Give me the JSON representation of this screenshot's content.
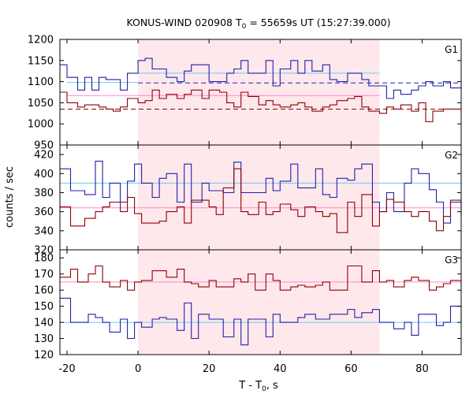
{
  "chart_data": {
    "type": "line",
    "title": "KONUS-WIND 020908 T",
    "title_sub": "0",
    "title_rest": " = 55659s UT (15:27:39.000)",
    "xlabel": "T - T",
    "xlabel_sub": "0",
    "xlabel_rest": ", s",
    "ylabel": "counts / sec",
    "xlim": [
      -22,
      91
    ],
    "xticks": [
      -20,
      0,
      20,
      40,
      60,
      80
    ],
    "x_tick_labels": [
      "-20",
      "0",
      "20",
      "40",
      "60",
      "80"
    ],
    "colors": {
      "blue": "#2020aa",
      "red": "#8b0000",
      "lightblue": "#66ccee",
      "pink": "#ff88cc",
      "shade": "#ffe8ec"
    },
    "shaded_interval": [
      0,
      68
    ],
    "panels": [
      {
        "name": "G1",
        "ylim": [
          950,
          1200
        ],
        "yticks": [
          950,
          1000,
          1050,
          1100,
          1150,
          1200
        ],
        "y_tick_labels": [
          "950",
          "1000",
          "1050",
          "1100",
          "1150",
          "1200"
        ],
        "step_x": [
          -22,
          -20,
          -17,
          -15,
          -13,
          -11,
          -9,
          -7,
          -5,
          -3,
          0,
          2,
          4,
          6,
          8,
          11,
          13,
          15,
          18,
          20,
          23,
          25,
          27,
          29,
          31,
          34,
          36,
          38,
          40,
          43,
          45,
          47,
          49,
          52,
          54,
          56,
          59,
          61,
          63,
          65,
          68,
          70,
          72,
          74,
          77,
          79,
          81,
          83,
          86,
          88,
          91
        ],
        "series": [
          {
            "color": "blue",
            "values": [
              1140,
              1110,
              1080,
              1110,
              1080,
              1110,
              1105,
              1105,
              1080,
              1120,
              1150,
              1155,
              1130,
              1130,
              1110,
              1100,
              1125,
              1140,
              1140,
              1100,
              1100,
              1120,
              1130,
              1150,
              1120,
              1120,
              1150,
              1090,
              1130,
              1150,
              1120,
              1150,
              1125,
              1140,
              1105,
              1100,
              1120,
              1120,
              1105,
              1090,
              1090,
              1060,
              1080,
              1070,
              1080,
              1090,
              1100,
              1090,
              1100,
              1085
            ]
          },
          {
            "color": "red",
            "values": [
              1075,
              1050,
              1040,
              1045,
              1045,
              1040,
              1035,
              1030,
              1040,
              1060,
              1050,
              1055,
              1080,
              1060,
              1070,
              1060,
              1070,
              1080,
              1060,
              1080,
              1075,
              1050,
              1040,
              1075,
              1065,
              1045,
              1055,
              1045,
              1040,
              1045,
              1050,
              1040,
              1030,
              1040,
              1045,
              1055,
              1060,
              1065,
              1040,
              1030,
              1025,
              1040,
              1035,
              1045,
              1030,
              1050,
              1005,
              1030,
              1035,
              1035
            ]
          }
        ],
        "levels": [
          {
            "color": "lightblue",
            "style": "solid",
            "x_from": 0,
            "x_to": 68,
            "value": 1120
          },
          {
            "color": "lightblue",
            "style": "solid",
            "x_from": -20,
            "x_to": 0,
            "value": 1098
          },
          {
            "color": "pink",
            "style": "solid",
            "x_from": -20,
            "x_to": 68,
            "value": 1067
          },
          {
            "color": "blue",
            "style": "dashed",
            "x_from": 0,
            "x_to": 91,
            "value": 1097
          },
          {
            "color": "red",
            "style": "dashed",
            "x_from": -22,
            "x_to": 91,
            "value": 1035
          }
        ]
      },
      {
        "name": "G2",
        "ylim": [
          320,
          430
        ],
        "yticks": [
          320,
          340,
          360,
          380,
          400,
          420
        ],
        "y_tick_labels": [
          "320",
          "340",
          "360",
          "380",
          "400",
          "420"
        ],
        "step_x": [
          -22,
          -19,
          -17,
          -15,
          -12,
          -10,
          -8,
          -5,
          -3,
          -1,
          1,
          4,
          6,
          8,
          11,
          13,
          15,
          18,
          20,
          22,
          24,
          27,
          29,
          31,
          34,
          36,
          38,
          40,
          43,
          45,
          47,
          50,
          52,
          54,
          56,
          59,
          61,
          63,
          66,
          68,
          70,
          72,
          75,
          77,
          79,
          82,
          84,
          86,
          88,
          91
        ],
        "series": [
          {
            "color": "blue",
            "values": [
              405,
              382,
              382,
              378,
              413,
              375,
              390,
              370,
              392,
              410,
              390,
              375,
              395,
              400,
              370,
              410,
              370,
              390,
              382,
              382,
              380,
              412,
              380,
              380,
              380,
              395,
              382,
              392,
              410,
              385,
              385,
              405,
              378,
              375,
              395,
              393,
              405,
              410,
              370,
              360,
              380,
              360,
              390,
              405,
              400,
              383,
              370,
              348,
              370,
              365
            ]
          },
          {
            "color": "red",
            "values": [
              365,
              345,
              345,
              353,
              360,
              365,
              370,
              360,
              375,
              358,
              348,
              348,
              350,
              360,
              365,
              348,
              372,
              372,
              365,
              357,
              385,
              405,
              360,
              357,
              370,
              357,
              360,
              368,
              362,
              355,
              365,
              360,
              355,
              358,
              338,
              370,
              355,
              378,
              345,
              360,
              373,
              370,
              360,
              355,
              360,
              350,
              340,
              355,
              372,
              355
            ]
          }
        ],
        "levels": [
          {
            "color": "lightblue",
            "style": "solid",
            "x_from": -22,
            "x_to": 91,
            "value": 390
          },
          {
            "color": "pink",
            "style": "solid",
            "x_from": -22,
            "x_to": 91,
            "value": 364
          }
        ]
      },
      {
        "name": "G3",
        "ylim": [
          120,
          185
        ],
        "yticks": [
          120,
          130,
          140,
          150,
          160,
          170,
          180
        ],
        "y_tick_labels": [
          "120",
          "130",
          "140",
          "150",
          "160",
          "170",
          "180"
        ],
        "step_x": [
          -22,
          -19,
          -17,
          -14,
          -12,
          -10,
          -8,
          -5,
          -3,
          -1,
          1,
          4,
          6,
          8,
          11,
          13,
          15,
          17,
          20,
          22,
          24,
          27,
          29,
          31,
          33,
          36,
          38,
          40,
          43,
          45,
          47,
          50,
          52,
          54,
          56,
          59,
          61,
          63,
          66,
          68,
          70,
          72,
          75,
          77,
          79,
          82,
          84,
          86,
          88,
          91
        ],
        "series": [
          {
            "color": "blue",
            "values": [
              155,
              140,
              140,
              145,
              143,
              140,
              134,
              142,
              130,
              140,
              137,
              142,
              143,
              142,
              135,
              152,
              130,
              145,
              142,
              142,
              131,
              142,
              126,
              142,
              142,
              131,
              145,
              140,
              140,
              143,
              145,
              142,
              142,
              145,
              145,
              148,
              143,
              146,
              148,
              140,
              140,
              136,
              140,
              132,
              145,
              145,
              138,
              140,
              150,
              140
            ]
          },
          {
            "color": "red",
            "values": [
              168,
              173,
              165,
              170,
              175,
              165,
              162,
              166,
              160,
              165,
              166,
              172,
              172,
              168,
              173,
              165,
              164,
              162,
              166,
              162,
              162,
              167,
              165,
              170,
              160,
              170,
              166,
              160,
              162,
              163,
              162,
              163,
              165,
              160,
              160,
              175,
              175,
              165,
              172,
              165,
              166,
              162,
              166,
              168,
              166,
              160,
              162,
              164,
              166,
              164
            ]
          }
        ],
        "levels": [
          {
            "color": "pink",
            "style": "solid",
            "x_from": -22,
            "x_to": 91,
            "value": 165
          },
          {
            "color": "lightblue",
            "style": "solid",
            "x_from": -22,
            "x_to": 91,
            "value": 140
          }
        ]
      }
    ]
  }
}
